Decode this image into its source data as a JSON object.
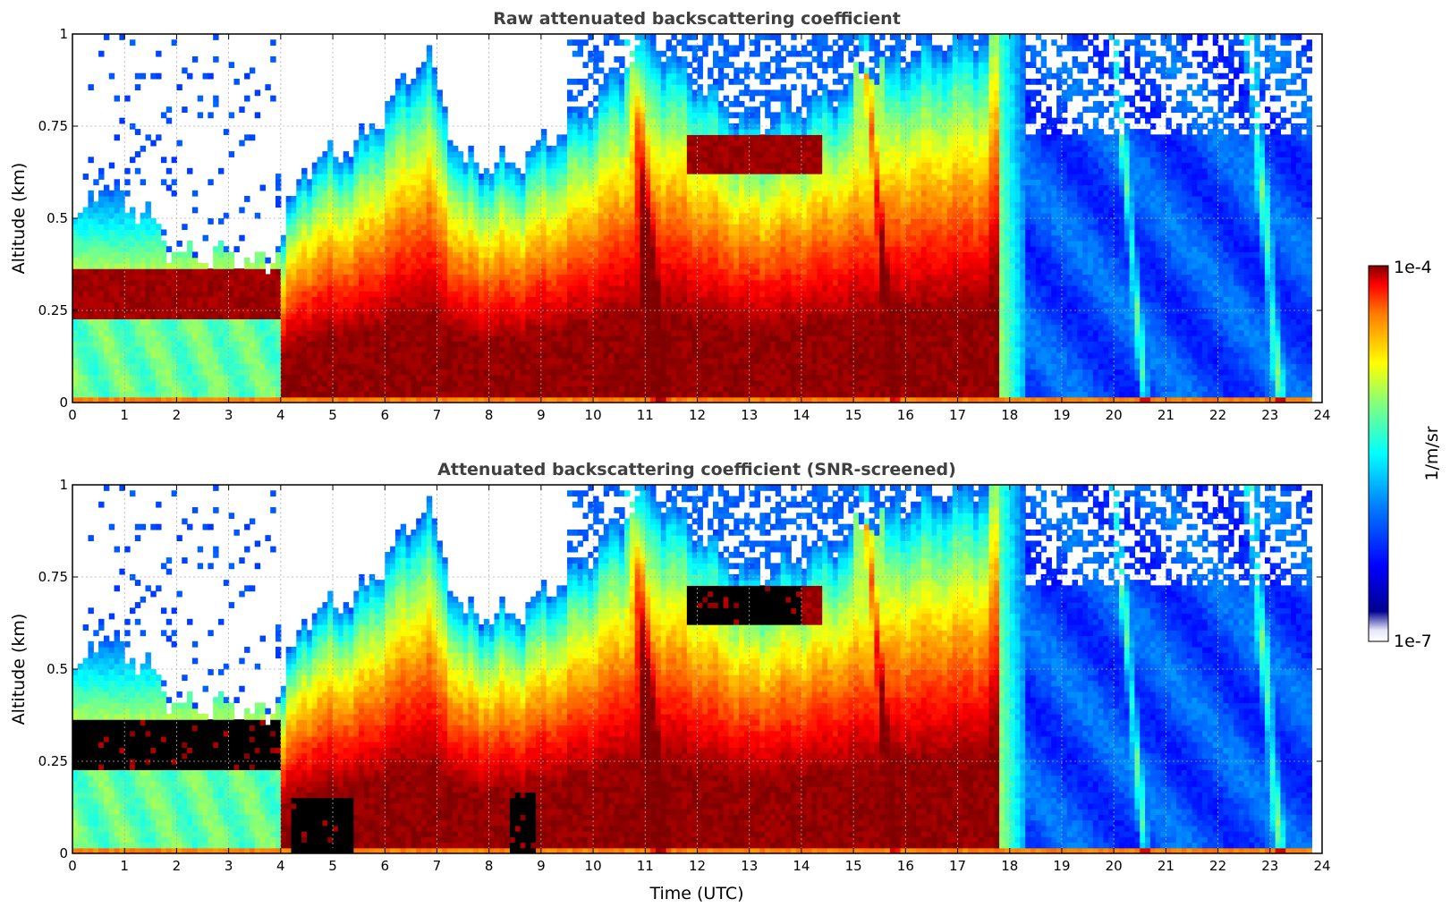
{
  "figure": {
    "colormap": "jet",
    "colors": {
      "title": "#404040",
      "grid": "#b0b0b0",
      "screened_out": "#000000",
      "background": "#ffffff"
    }
  },
  "chart_data": [
    {
      "type": "heatmap",
      "title": "Raw attenuated backscattering coefficient",
      "xlabel": "",
      "ylabel": "Altitude (km)",
      "xlim": [
        0,
        24
      ],
      "ylim": [
        0,
        1
      ],
      "xticks": [
        "0",
        "1",
        "2",
        "3",
        "4",
        "5",
        "6",
        "7",
        "8",
        "9",
        "10",
        "11",
        "12",
        "13",
        "14",
        "15",
        "16",
        "17",
        "18",
        "19",
        "20",
        "21",
        "22",
        "23",
        "24"
      ],
      "yticks": [
        "0",
        "0.25",
        "0.5",
        "0.75",
        "1"
      ],
      "grid": true,
      "z_units": "1/m/sr",
      "z_scale": "log",
      "z_range": [
        "1e-7",
        "1e-4"
      ],
      "time_range_with_data": [
        0,
        23.8
      ],
      "boundary_layer_top_km": [
        [
          0,
          0.45
        ],
        [
          0.5,
          0.6
        ],
        [
          1,
          0.55
        ],
        [
          1.5,
          0.5
        ],
        [
          2,
          0.4
        ],
        [
          3,
          0.4
        ],
        [
          3.8,
          0.37
        ],
        [
          4.5,
          0.65
        ],
        [
          5.5,
          0.7
        ],
        [
          6,
          0.8
        ],
        [
          6.8,
          0.95
        ],
        [
          7.5,
          0.65
        ],
        [
          8.5,
          0.65
        ],
        [
          9.5,
          0.75
        ],
        [
          10.5,
          0.9
        ],
        [
          11,
          1.0
        ],
        [
          13,
          0.75
        ],
        [
          14.3,
          0.82
        ],
        [
          16,
          0.95
        ],
        [
          17.5,
          1.0
        ]
      ],
      "cloud_layers": [
        {
          "time": [
            0,
            4
          ],
          "altitude_km": [
            0.22,
            0.36
          ],
          "intensity": "1e-4"
        },
        {
          "time": [
            11.8,
            14.4
          ],
          "altitude_km": [
            0.62,
            0.73
          ],
          "intensity": "1e-4"
        }
      ]
    },
    {
      "type": "heatmap",
      "title": "Attenuated backscattering coefficient (SNR-screened)",
      "xlabel": "Time (UTC)",
      "ylabel": "Altitude (km)",
      "xlim": [
        0,
        24
      ],
      "ylim": [
        0,
        1
      ],
      "xticks": [
        "0",
        "1",
        "2",
        "3",
        "4",
        "5",
        "6",
        "7",
        "8",
        "9",
        "10",
        "11",
        "12",
        "13",
        "14",
        "15",
        "16",
        "17",
        "18",
        "19",
        "20",
        "21",
        "22",
        "23",
        "24"
      ],
      "yticks": [
        "0",
        "0.25",
        "0.5",
        "0.75",
        "1"
      ],
      "grid": true,
      "z_units": "1/m/sr",
      "z_scale": "log",
      "z_range": [
        "1e-7",
        "1e-4"
      ],
      "time_range_with_data": [
        0,
        23.8
      ],
      "screened_regions": [
        {
          "time": [
            0,
            4
          ],
          "altitude_km": [
            0.22,
            0.36
          ]
        },
        {
          "time": [
            11.8,
            14.0
          ],
          "altitude_km": [
            0.62,
            0.73
          ]
        },
        {
          "time": [
            4.2,
            5.4
          ],
          "altitude_km": [
            0.0,
            0.15
          ]
        },
        {
          "time": [
            8.4,
            8.9
          ],
          "altitude_km": [
            0.0,
            0.17
          ]
        }
      ]
    }
  ],
  "colorbar": {
    "max_label": "1e-4",
    "min_label": "1e-7",
    "units_label": "1/m/sr"
  }
}
